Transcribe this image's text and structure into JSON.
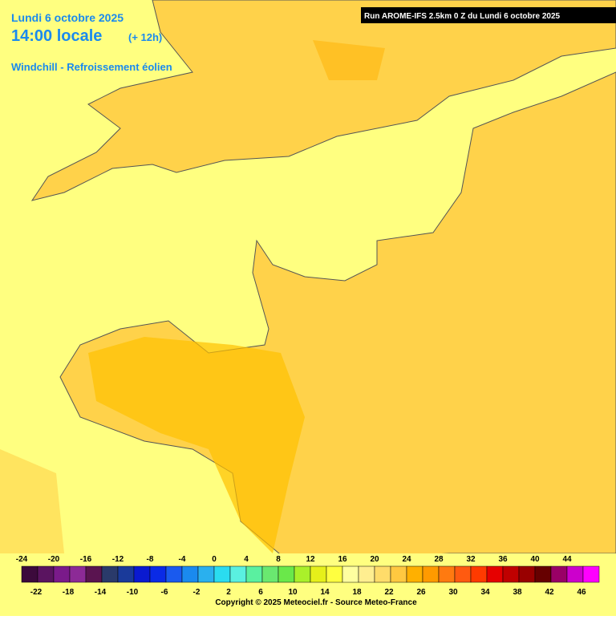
{
  "header": {
    "date": "Lundi 6 octobre 2025",
    "time": "14:00 locale",
    "lead": "(+ 12h)",
    "parameter": "Windchill - Refroissement éolien",
    "run": "Run AROME-IFS 2.5km 0 Z du Lundi 6 octobre 2025"
  },
  "colorbar": {
    "top_labels": [
      -24,
      -20,
      -16,
      -12,
      -8,
      -4,
      0,
      4,
      8,
      12,
      16,
      20,
      24,
      28,
      32,
      36,
      40,
      44
    ],
    "bottom_labels": [
      -22,
      -18,
      -14,
      -10,
      -6,
      -2,
      2,
      6,
      10,
      14,
      18,
      22,
      26,
      30,
      34,
      38,
      42,
      46
    ],
    "colors": [
      "#3c0a3c",
      "#5a1460",
      "#7a1a8a",
      "#8c2a96",
      "#5a1450",
      "#2a3a6a",
      "#1a3a9a",
      "#0a1ad0",
      "#0a2ae6",
      "#1a5aee",
      "#1a8aee",
      "#2ab0ee",
      "#2adcf0",
      "#5af0e0",
      "#5af0a0",
      "#6ae870",
      "#6ae84a",
      "#aaf02a",
      "#e6f01a",
      "#ffff40",
      "#ffffa0",
      "#ffee90",
      "#ffdc6a",
      "#ffc840",
      "#ffb000",
      "#ff9a00",
      "#ff7a10",
      "#ff5a10",
      "#ff3a00",
      "#e60000",
      "#c00000",
      "#990000",
      "#660000",
      "#990066",
      "#cc00cc",
      "#ff00ff"
    ]
  },
  "footer": {
    "copyright": "Copyright © 2025 Meteociel.fr - Source Meteo-France"
  }
}
